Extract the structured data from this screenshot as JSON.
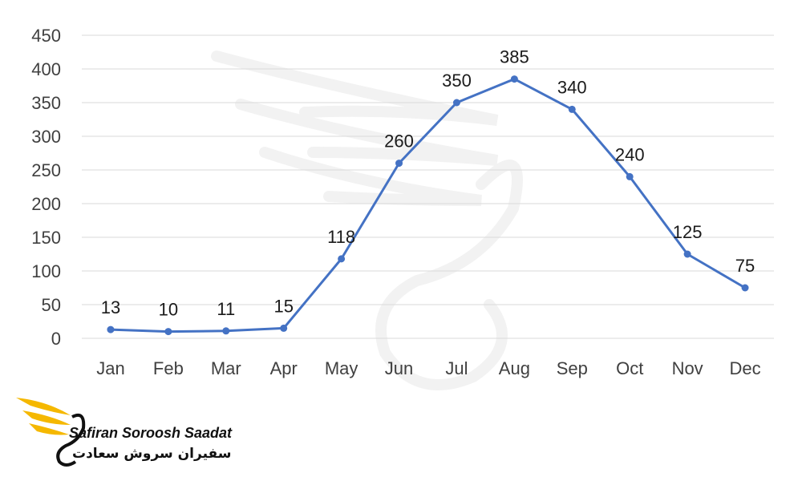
{
  "chart_data": {
    "type": "line",
    "categories": [
      "Jan",
      "Feb",
      "Mar",
      "Apr",
      "May",
      "Jun",
      "Jul",
      "Aug",
      "Sep",
      "Oct",
      "Nov",
      "Dec"
    ],
    "values": [
      13,
      10,
      11,
      15,
      118,
      260,
      350,
      385,
      340,
      240,
      125,
      75
    ],
    "ylim": [
      0,
      450
    ],
    "yticks": [
      0,
      50,
      100,
      150,
      200,
      250,
      300,
      350,
      400,
      450
    ],
    "grid": true,
    "data_labels": true,
    "line_color": "#4472C4",
    "grid_color": "#D9D9D9"
  },
  "logo": {
    "text_en": "Safiran Soroosh Saadat",
    "text_fa": "سفیران سروش سعادت",
    "accent_color": "#F5B800"
  }
}
